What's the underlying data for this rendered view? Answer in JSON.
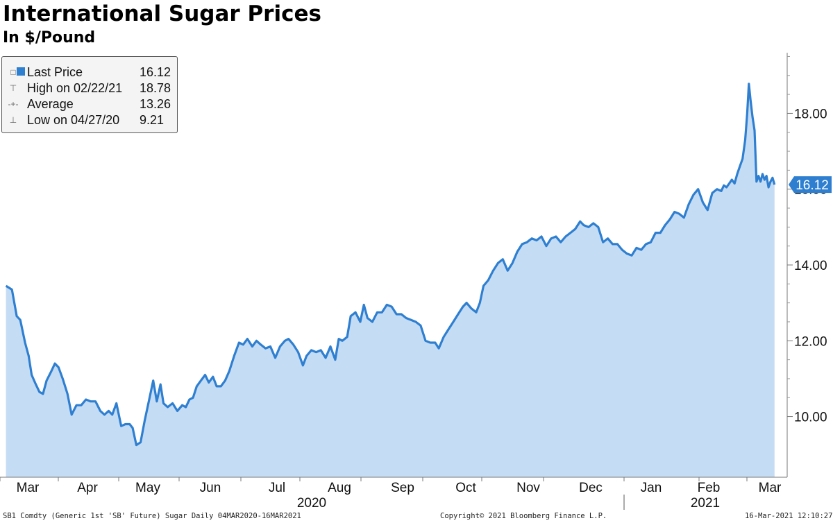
{
  "title": "International Sugar Prices",
  "subtitle": "In $/Pound",
  "legend": [
    {
      "marker": "□",
      "label": "Last Price",
      "value": "16.12"
    },
    {
      "marker": "⊤",
      "label": "High on 02/22/21",
      "value": "18.78"
    },
    {
      "marker": "-+-",
      "label": "Average",
      "value": "13.26"
    },
    {
      "marker": "⊥",
      "label": "Low on 04/27/20",
      "value": "9.21"
    }
  ],
  "last_price_tag": "16.12",
  "footer": {
    "left": "SB1 Comdty (Generic 1st 'SB' Future) Sugar  Daily 04MAR2020-16MAR2021",
    "center": "Copyright© 2021 Bloomberg Finance L.P.",
    "right": "16-Mar-2021 12:10:27"
  },
  "colors": {
    "line": "#2f7fd1",
    "fill": "#c5dcf5",
    "tag": "#2f7fd1"
  },
  "chart_data": {
    "type": "area",
    "title": "International Sugar Prices",
    "subtitle": "In $/Pound",
    "x_unit": "month index (0 = 1 Mar 2020)",
    "ylim": [
      8.4,
      19.6
    ],
    "y_ticks": [
      10.0,
      12.0,
      14.0,
      16.0,
      18.0
    ],
    "y_tick_labels": [
      "10.00",
      "12.00",
      "14.00",
      "16.00",
      "18.00"
    ],
    "month_ticks": [
      0,
      1,
      2,
      3,
      4,
      5,
      6,
      7,
      8,
      9,
      10,
      11,
      12,
      13
    ],
    "month_labels": [
      "Mar",
      "Apr",
      "May",
      "Jun",
      "Jul",
      "Aug",
      "Sep",
      "Oct",
      "Nov",
      "Dec",
      "Jan",
      "Feb",
      "Mar"
    ],
    "year_labels": [
      {
        "label": "2020",
        "x": 4.8
      },
      {
        "label": "2021",
        "x": 11.0
      }
    ],
    "year_separator": 10.0,
    "axis_side": "right",
    "grid": false,
    "legend_position": "top-left",
    "series": [
      {
        "points": [
          [
            0.1,
            13.45
          ],
          [
            0.2,
            13.35
          ],
          [
            0.28,
            12.65
          ],
          [
            0.34,
            12.55
          ],
          [
            0.42,
            11.95
          ],
          [
            0.48,
            11.6
          ],
          [
            0.53,
            11.1
          ],
          [
            0.6,
            10.85
          ],
          [
            0.66,
            10.65
          ],
          [
            0.72,
            10.6
          ],
          [
            0.78,
            10.95
          ],
          [
            0.86,
            11.2
          ],
          [
            0.92,
            11.4
          ],
          [
            0.98,
            11.3
          ],
          [
            1.05,
            11.0
          ],
          [
            1.13,
            10.6
          ],
          [
            1.2,
            10.05
          ],
          [
            1.28,
            10.3
          ],
          [
            1.36,
            10.3
          ],
          [
            1.44,
            10.45
          ],
          [
            1.52,
            10.4
          ],
          [
            1.6,
            10.4
          ],
          [
            1.68,
            10.15
          ],
          [
            1.75,
            10.05
          ],
          [
            1.82,
            10.15
          ],
          [
            1.88,
            10.05
          ],
          [
            1.95,
            10.35
          ],
          [
            2.03,
            9.75
          ],
          [
            2.1,
            9.8
          ],
          [
            2.17,
            9.8
          ],
          [
            2.22,
            9.7
          ],
          [
            2.28,
            9.25
          ],
          [
            2.35,
            9.32
          ],
          [
            2.42,
            9.9
          ],
          [
            2.5,
            10.5
          ],
          [
            2.56,
            10.95
          ],
          [
            2.62,
            10.4
          ],
          [
            2.68,
            10.85
          ],
          [
            2.73,
            10.35
          ],
          [
            2.8,
            10.25
          ],
          [
            2.88,
            10.35
          ],
          [
            2.96,
            10.15
          ],
          [
            3.04,
            10.3
          ],
          [
            3.1,
            10.25
          ],
          [
            3.16,
            10.45
          ],
          [
            3.22,
            10.5
          ],
          [
            3.28,
            10.8
          ],
          [
            3.35,
            10.95
          ],
          [
            3.42,
            11.1
          ],
          [
            3.48,
            10.9
          ],
          [
            3.55,
            11.05
          ],
          [
            3.61,
            10.8
          ],
          [
            3.68,
            10.8
          ],
          [
            3.75,
            10.95
          ],
          [
            3.82,
            11.2
          ],
          [
            3.9,
            11.6
          ],
          [
            3.98,
            11.95
          ],
          [
            4.05,
            11.9
          ],
          [
            4.12,
            12.05
          ],
          [
            4.2,
            11.85
          ],
          [
            4.27,
            12.0
          ],
          [
            4.34,
            11.9
          ],
          [
            4.42,
            11.8
          ],
          [
            4.5,
            11.85
          ],
          [
            4.58,
            11.55
          ],
          [
            4.66,
            11.85
          ],
          [
            4.74,
            12.0
          ],
          [
            4.8,
            12.05
          ],
          [
            4.88,
            11.9
          ],
          [
            4.96,
            11.7
          ],
          [
            5.04,
            11.35
          ],
          [
            5.1,
            11.6
          ],
          [
            5.18,
            11.75
          ],
          [
            5.26,
            11.7
          ],
          [
            5.34,
            11.75
          ],
          [
            5.42,
            11.55
          ],
          [
            5.5,
            11.85
          ],
          [
            5.58,
            11.5
          ],
          [
            5.64,
            12.05
          ],
          [
            5.7,
            12.0
          ],
          [
            5.78,
            12.1
          ],
          [
            5.84,
            12.65
          ],
          [
            5.92,
            12.75
          ],
          [
            6.0,
            12.5
          ],
          [
            6.06,
            12.95
          ],
          [
            6.12,
            12.6
          ],
          [
            6.2,
            12.5
          ],
          [
            6.28,
            12.75
          ],
          [
            6.36,
            12.75
          ],
          [
            6.44,
            12.95
          ],
          [
            6.52,
            12.9
          ],
          [
            6.6,
            12.7
          ],
          [
            6.68,
            12.7
          ],
          [
            6.76,
            12.6
          ],
          [
            6.84,
            12.55
          ],
          [
            6.92,
            12.5
          ],
          [
            7.0,
            12.4
          ],
          [
            7.08,
            12.0
          ],
          [
            7.16,
            11.95
          ],
          [
            7.24,
            11.95
          ],
          [
            7.3,
            11.8
          ],
          [
            7.38,
            12.1
          ],
          [
            7.46,
            12.3
          ],
          [
            7.54,
            12.5
          ],
          [
            7.62,
            12.7
          ],
          [
            7.7,
            12.9
          ],
          [
            7.76,
            13.0
          ],
          [
            7.84,
            12.85
          ],
          [
            7.92,
            12.75
          ],
          [
            7.98,
            13.0
          ],
          [
            8.04,
            13.45
          ],
          [
            8.12,
            13.6
          ],
          [
            8.2,
            13.85
          ],
          [
            8.28,
            14.05
          ],
          [
            8.36,
            14.15
          ],
          [
            8.44,
            13.85
          ],
          [
            8.52,
            14.05
          ],
          [
            8.6,
            14.35
          ],
          [
            8.68,
            14.55
          ],
          [
            8.76,
            14.6
          ],
          [
            8.84,
            14.7
          ],
          [
            8.92,
            14.65
          ],
          [
            9.0,
            14.75
          ],
          [
            9.08,
            14.5
          ],
          [
            9.16,
            14.7
          ],
          [
            9.24,
            14.75
          ],
          [
            9.32,
            14.6
          ],
          [
            9.4,
            14.75
          ],
          [
            9.48,
            14.85
          ],
          [
            9.56,
            14.95
          ],
          [
            9.64,
            15.15
          ],
          [
            9.7,
            15.05
          ],
          [
            9.78,
            15.0
          ],
          [
            9.86,
            15.1
          ],
          [
            9.94,
            15.0
          ],
          [
            10.02,
            14.6
          ],
          [
            10.1,
            14.7
          ],
          [
            10.18,
            14.55
          ],
          [
            10.26,
            14.55
          ],
          [
            10.34,
            14.4
          ],
          [
            10.42,
            14.3
          ],
          [
            10.5,
            14.25
          ],
          [
            10.58,
            14.45
          ],
          [
            10.66,
            14.4
          ],
          [
            10.74,
            14.55
          ],
          [
            10.82,
            14.6
          ],
          [
            10.9,
            14.85
          ],
          [
            10.98,
            14.85
          ],
          [
            11.06,
            15.05
          ],
          [
            11.14,
            15.2
          ],
          [
            11.22,
            15.4
          ],
          [
            11.3,
            15.35
          ],
          [
            11.38,
            15.25
          ],
          [
            11.46,
            15.6
          ],
          [
            11.54,
            15.85
          ],
          [
            11.62,
            16.0
          ],
          [
            11.7,
            15.65
          ],
          [
            11.78,
            15.45
          ],
          [
            11.86,
            15.9
          ],
          [
            11.94,
            16.0
          ],
          [
            12.02,
            15.95
          ],
          [
            12.1,
            16.1
          ],
          [
            12.18,
            16.05
          ],
          [
            12.26,
            16.15
          ],
          [
            12.34,
            16.25
          ],
          [
            12.42,
            16.15
          ],
          [
            12.5,
            16.4
          ],
          [
            12.58,
            16.6
          ],
          [
            12.66,
            16.8
          ],
          [
            12.74,
            17.3
          ],
          [
            12.8,
            18.0
          ],
          [
            12.85,
            18.78
          ],
          [
            12.9,
            18.35
          ],
          [
            12.96,
            17.9
          ],
          [
            13.02,
            17.55
          ],
          [
            13.08,
            16.2
          ],
          [
            13.14,
            16.35
          ],
          [
            13.2,
            16.2
          ],
          [
            13.26,
            16.4
          ],
          [
            13.32,
            16.25
          ],
          [
            13.38,
            16.35
          ],
          [
            13.44,
            16.05
          ],
          [
            13.5,
            16.2
          ],
          [
            13.56,
            16.3
          ],
          [
            13.62,
            16.12
          ]
        ]
      }
    ]
  }
}
